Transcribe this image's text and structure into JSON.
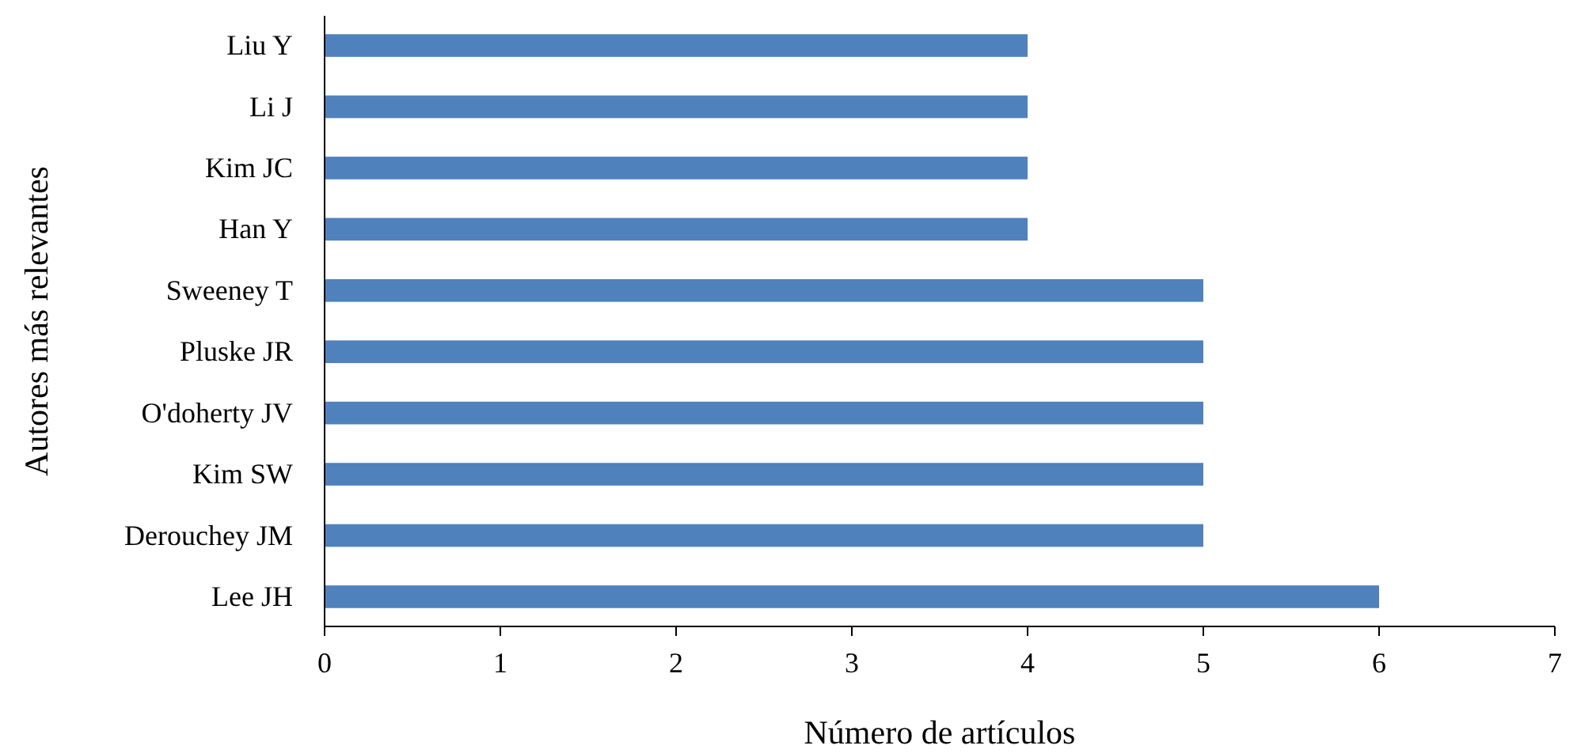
{
  "chart_data": {
    "type": "bar",
    "orientation": "horizontal",
    "xlabel": "Número de artículos",
    "ylabel": "Autores más relevantes",
    "categories": [
      "Liu Y",
      "Li J",
      "Kim JC",
      "Han Y",
      "Sweeney T",
      "Pluske JR",
      "O'doherty JV",
      "Kim SW",
      "Derouchey JM",
      "Lee JH"
    ],
    "values": [
      4,
      4,
      4,
      4,
      5,
      5,
      5,
      5,
      5,
      6
    ],
    "color": "#4f81bd",
    "xlim": [
      0,
      7
    ],
    "xticks": [
      0,
      1,
      2,
      3,
      4,
      5,
      6,
      7
    ]
  }
}
